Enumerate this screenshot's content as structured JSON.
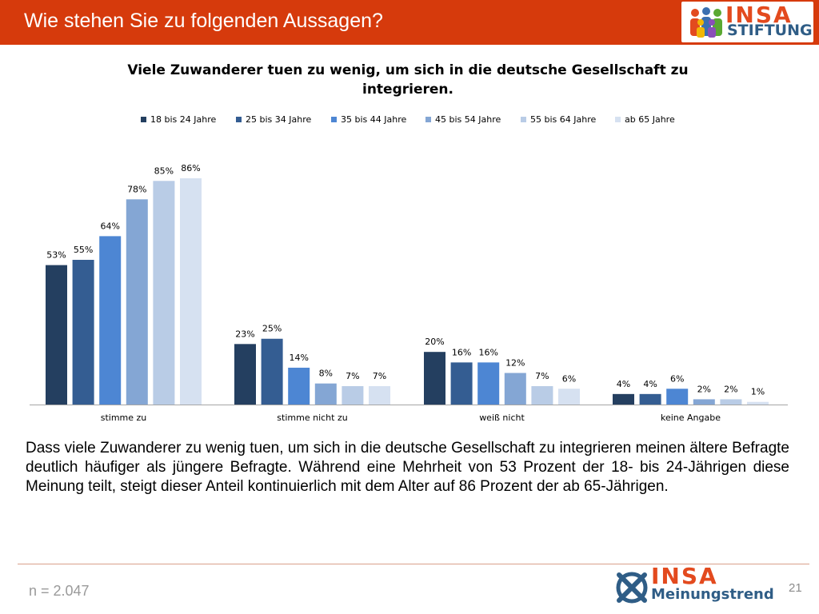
{
  "header": {
    "title": "Wie stehen Sie zu folgenden Aussagen?",
    "logo": {
      "brand": "INSA",
      "subtitle": "STIFTUNG"
    }
  },
  "chart_data": {
    "type": "bar",
    "title": "Viele Zuwanderer tuen zu wenig, um sich in die deutsche Gesellschaft zu integrieren.",
    "categories": [
      "stimme zu",
      "stimme nicht zu",
      "weiß nicht",
      "keine Angabe"
    ],
    "series": [
      {
        "name": "18 bis 24 Jahre",
        "values": [
          53,
          23,
          20,
          4
        ],
        "color": "#243f60"
      },
      {
        "name": "25 bis 34 Jahre",
        "values": [
          55,
          25,
          16,
          4
        ],
        "color": "#345d92"
      },
      {
        "name": "35 bis 44 Jahre",
        "values": [
          64,
          14,
          16,
          6
        ],
        "color": "#4d86d3"
      },
      {
        "name": "45 bis 54 Jahre",
        "values": [
          78,
          8,
          12,
          2
        ],
        "color": "#84a6d4"
      },
      {
        "name": "55 bis 64 Jahre",
        "values": [
          85,
          7,
          7,
          2
        ],
        "color": "#b9cce6"
      },
      {
        "name": "ab 65 Jahre",
        "values": [
          86,
          7,
          6,
          1
        ],
        "color": "#d6e1f1"
      }
    ],
    "value_suffix": "%",
    "ylim": [
      0,
      100
    ],
    "grid": false,
    "legend_position": "top"
  },
  "summary": "Dass viele Zuwanderer zu wenig tuen, um sich in die deutsche Gesellschaft zu integrieren meinen ältere Befragte deutlich häufiger als jüngere Befragte. Während eine Mehrheit von 53 Prozent der 18- bis 24-Jährigen diese Meinung teilt, steigt dieser Anteil kontinuierlich mit dem Alter auf 86 Prozent der ab 65-Jährigen.",
  "footer": {
    "sample_size": "n = 2.047",
    "page_number": "21",
    "logo": {
      "brand": "INSA",
      "subtitle": "Meinungstrend"
    }
  },
  "colors": {
    "header_bg": "#d63a0c",
    "brand_orange": "#e34a1e",
    "brand_blue": "#2f5d86"
  }
}
